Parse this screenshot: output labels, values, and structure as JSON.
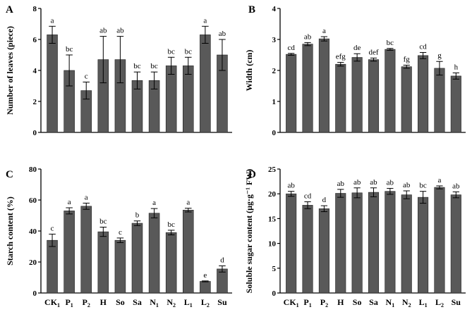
{
  "chart_data": [
    {
      "panel": "A",
      "type": "bar",
      "ylabel": "Number of leaves (piece)",
      "ylim": [
        0,
        8
      ],
      "yticks": [
        0,
        2,
        4,
        6,
        8
      ],
      "show_x_labels": false,
      "categories": [
        "CK1",
        "P1",
        "P2",
        "H",
        "So",
        "Sa",
        "N1",
        "N2",
        "L1",
        "L2",
        "Su"
      ],
      "values": [
        6.3,
        4.0,
        2.7,
        4.7,
        4.7,
        3.35,
        3.35,
        4.3,
        4.3,
        6.3,
        5.0
      ],
      "errors": [
        0.55,
        1.0,
        0.55,
        1.5,
        1.5,
        0.55,
        0.55,
        0.55,
        0.55,
        0.55,
        1.0
      ],
      "letters": [
        "a",
        "bc",
        "c",
        "ab",
        "ab",
        "bc",
        "bc",
        "bc",
        "bc",
        "a",
        "ab"
      ]
    },
    {
      "panel": "B",
      "type": "bar",
      "ylabel": "Width (cm)",
      "ylim": [
        0,
        4
      ],
      "yticks": [
        0,
        1,
        2,
        3,
        4
      ],
      "show_x_labels": false,
      "categories": [
        "CK1",
        "P1",
        "P2",
        "H",
        "So",
        "Sa",
        "N1",
        "N2",
        "L1",
        "L2",
        "Su"
      ],
      "values": [
        2.52,
        2.85,
        3.02,
        2.2,
        2.42,
        2.35,
        2.68,
        2.12,
        2.48,
        2.07,
        1.82
      ],
      "errors": [
        0.03,
        0.05,
        0.07,
        0.06,
        0.12,
        0.05,
        0.03,
        0.05,
        0.1,
        0.22,
        0.1
      ],
      "letters": [
        "cd",
        "ab",
        "a",
        "efg",
        "de",
        "def",
        "bc",
        "fg",
        "cd",
        "g",
        "h"
      ]
    },
    {
      "panel": "C",
      "type": "bar",
      "ylabel": "Starch content (%)",
      "ylim": [
        0,
        80
      ],
      "yticks": [
        0,
        20,
        40,
        60,
        80
      ],
      "show_x_labels": true,
      "categories": [
        "CK1",
        "P1",
        "P2",
        "H",
        "So",
        "Sa",
        "N1",
        "N2",
        "L1",
        "L2",
        "Su"
      ],
      "values": [
        34,
        53,
        56,
        39.5,
        34,
        45,
        51.5,
        39,
        53.5,
        7.5,
        15.5
      ],
      "errors": [
        4,
        2,
        2,
        3,
        1.5,
        1.5,
        3,
        1.5,
        1.2,
        0.3,
        2
      ],
      "letters": [
        "c",
        "a",
        "a",
        "bc",
        "c",
        "b",
        "a",
        "bc",
        "a",
        "e",
        "d"
      ]
    },
    {
      "panel": "D",
      "type": "bar",
      "ylabel": "Soluble sugar content (µg·g⁻¹ FW)",
      "ylim": [
        0,
        25
      ],
      "yticks": [
        0,
        5,
        10,
        15,
        20,
        25
      ],
      "show_x_labels": true,
      "categories": [
        "CK1",
        "P1",
        "P2",
        "H",
        "So",
        "Sa",
        "N1",
        "N2",
        "L1",
        "L2",
        "Su"
      ],
      "values": [
        20,
        17.7,
        17,
        20.1,
        20.2,
        20.3,
        20.5,
        19.8,
        19.3,
        21.3,
        19.8
      ],
      "errors": [
        0.5,
        0.7,
        0.6,
        0.8,
        1.0,
        0.9,
        0.6,
        0.8,
        1.2,
        0.3,
        0.6
      ],
      "letters": [
        "ab",
        "cd",
        "d",
        "ab",
        "ab",
        "ab",
        "ab",
        "ab",
        "bc",
        "a",
        "ab"
      ]
    }
  ],
  "style": {
    "bar_color": "#595959",
    "axis_color": "#000000"
  }
}
